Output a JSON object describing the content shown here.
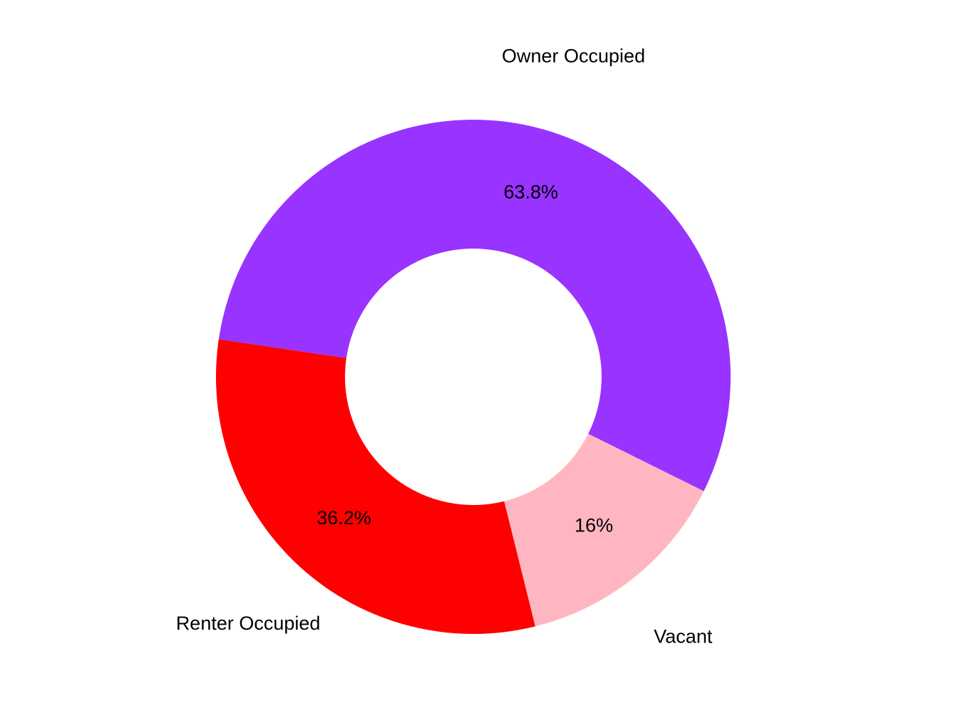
{
  "chart_data": {
    "type": "donut",
    "categories": [
      "Owner Occupied",
      "Renter Occupied",
      "Vacant"
    ],
    "values": [
      63.8,
      36.2,
      16
    ],
    "value_labels": [
      "63.8%",
      "36.2%",
      "16%"
    ],
    "colors": [
      "#9933ff",
      "#ff0000",
      "#ffb6c1"
    ]
  }
}
